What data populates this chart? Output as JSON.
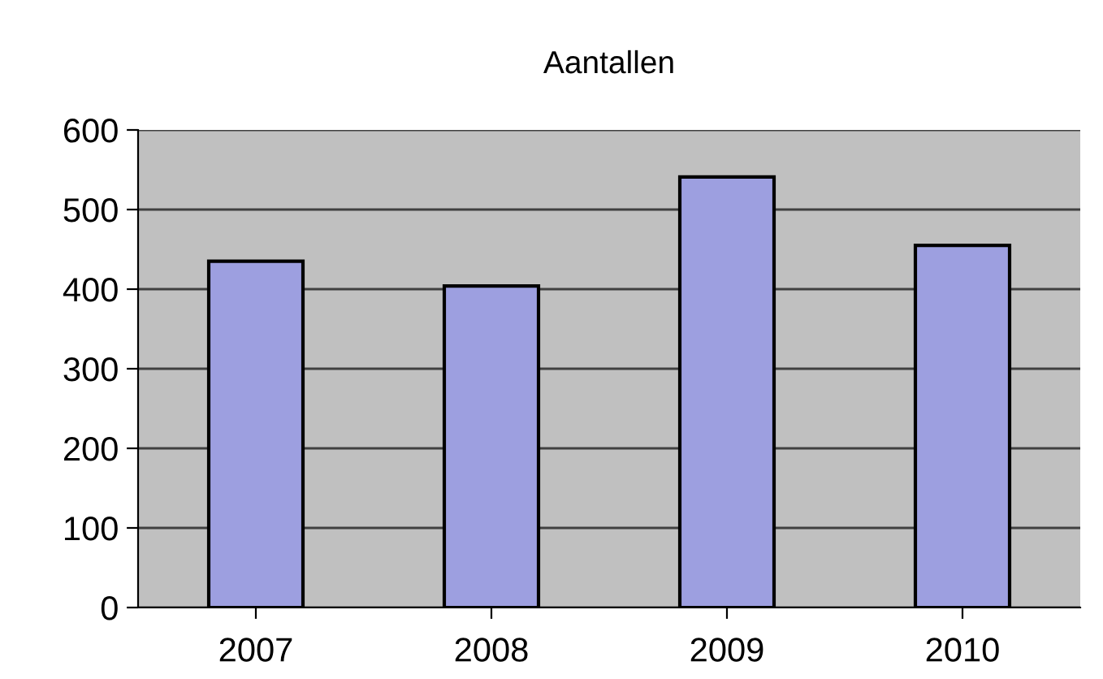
{
  "chart_data": {
    "type": "bar",
    "title": "Aantallen",
    "categories": [
      "2007",
      "2008",
      "2009",
      "2010"
    ],
    "values": [
      435,
      404,
      541,
      455
    ],
    "color": "#9d9fe0",
    "ylim": [
      0,
      600
    ],
    "yticks": [
      0,
      100,
      200,
      300,
      400,
      500,
      600
    ],
    "grid": "y"
  }
}
